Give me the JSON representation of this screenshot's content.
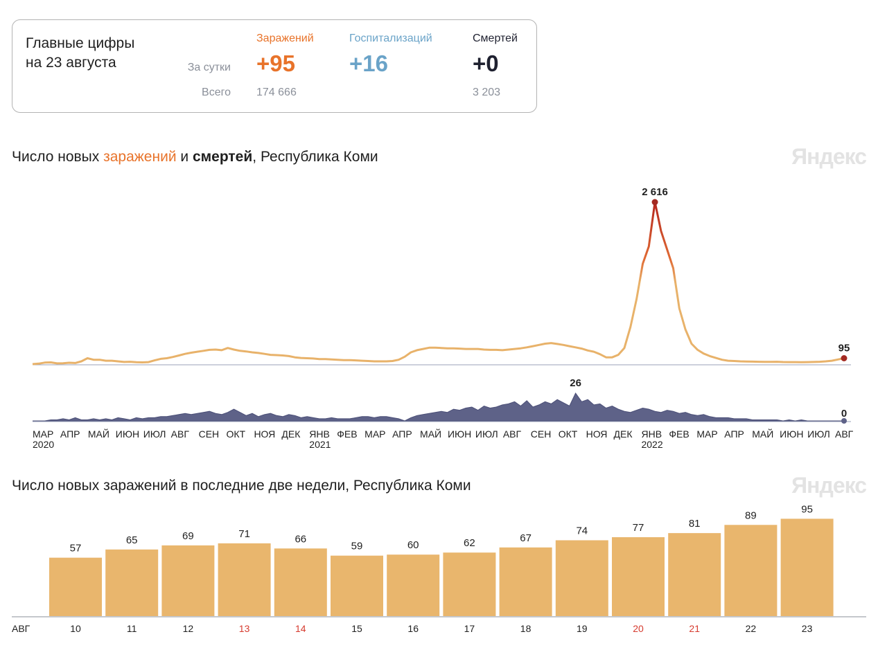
{
  "summary": {
    "title_line1": "Главные цифры",
    "title_line2": "на 23 августа",
    "row_day": "За сутки",
    "row_total": "Всего",
    "infections": {
      "label": "Заражений",
      "day": "+95",
      "total": "174 666",
      "color": "#e8732a"
    },
    "hospitalizations": {
      "label": "Госпитализаций",
      "day": "+16",
      "total": "",
      "color": "#6aa3c8"
    },
    "deaths": {
      "label": "Смертей",
      "day": "+0",
      "total": "3 203",
      "color": "#1f2130"
    }
  },
  "chart1": {
    "title_pre": "Число новых ",
    "title_inf": "заражений",
    "title_mid": " и ",
    "title_deaths": "смертей",
    "title_post": ", Республика Коми",
    "watermark": "Яндекс"
  },
  "chart2": {
    "title": "Число новых заражений в последние две недели, Республика Коми",
    "watermark": "Яндекс"
  },
  "chart_data": [
    {
      "type": "area",
      "title": "Число новых заражений и смертей, Республика Коми",
      "series": [
        {
          "name": "Заражений",
          "note": "weekly approximate values of daily new infections, Mar 2020 – Aug 2022",
          "values": [
            0,
            8,
            25,
            28,
            12,
            15,
            22,
            18,
            45,
            95,
            70,
            70,
            55,
            55,
            45,
            35,
            38,
            30,
            28,
            32,
            60,
            85,
            95,
            115,
            140,
            165,
            185,
            200,
            215,
            230,
            235,
            225,
            260,
            235,
            215,
            205,
            190,
            180,
            165,
            150,
            145,
            140,
            130,
            110,
            100,
            95,
            90,
            80,
            80,
            75,
            70,
            65,
            65,
            60,
            55,
            50,
            45,
            45,
            45,
            50,
            70,
            120,
            190,
            225,
            245,
            265,
            265,
            260,
            255,
            255,
            250,
            245,
            245,
            245,
            235,
            230,
            230,
            225,
            235,
            245,
            255,
            270,
            290,
            310,
            330,
            340,
            325,
            310,
            290,
            270,
            250,
            220,
            200,
            160,
            110,
            110,
            150,
            260,
            600,
            1050,
            1620,
            1900,
            2616,
            2150,
            1850,
            1550,
            900,
            560,
            330,
            230,
            170,
            130,
            100,
            70,
            55,
            50,
            45,
            42,
            40,
            38,
            36,
            36,
            38,
            34,
            32,
            32,
            30,
            32,
            35,
            38,
            45,
            55,
            75,
            95
          ],
          "peak_label": "2 616",
          "last_label": "95"
        },
        {
          "name": "Смертей",
          "note": "weekly approximate values of daily new deaths",
          "values": [
            0,
            0,
            0,
            1,
            1,
            2,
            1,
            3,
            1,
            1,
            2,
            1,
            2,
            1,
            3,
            2,
            1,
            3,
            2,
            3,
            3,
            4,
            4,
            5,
            6,
            7,
            6,
            7,
            8,
            9,
            7,
            6,
            8,
            11,
            8,
            5,
            7,
            4,
            6,
            7,
            5,
            4,
            6,
            5,
            3,
            4,
            3,
            2,
            2,
            3,
            2,
            2,
            2,
            3,
            4,
            4,
            3,
            4,
            4,
            3,
            2,
            0,
            3,
            5,
            6,
            7,
            8,
            9,
            8,
            11,
            10,
            12,
            13,
            10,
            14,
            12,
            13,
            15,
            16,
            18,
            14,
            19,
            13,
            15,
            18,
            16,
            20,
            17,
            14,
            26,
            18,
            20,
            15,
            16,
            12,
            14,
            11,
            9,
            8,
            10,
            12,
            11,
            9,
            8,
            10,
            9,
            7,
            8,
            6,
            5,
            6,
            4,
            3,
            3,
            3,
            2,
            2,
            2,
            1,
            1,
            1,
            1,
            1,
            0,
            1,
            0,
            1,
            0,
            0,
            0,
            0,
            0
          ],
          "peak_label": "26",
          "last_label": "0"
        }
      ],
      "x_month_labels": [
        "МАР",
        "АПР",
        "МАЙ",
        "ИЮН",
        "ИЮЛ",
        "АВГ",
        "СЕН",
        "ОКТ",
        "НОЯ",
        "ДЕК",
        "ЯНВ",
        "ФЕВ",
        "МАР",
        "АПР",
        "МАЙ",
        "ИЮН",
        "ИЮЛ",
        "АВГ",
        "СЕН",
        "ОКТ",
        "НОЯ",
        "ДЕК",
        "ЯНВ",
        "ФЕВ",
        "МАР",
        "АПР",
        "МАЙ",
        "ИЮН",
        "ИЮЛ",
        "АВГ"
      ],
      "x_year_labels": [
        {
          "month_index": 0,
          "year": "2020"
        },
        {
          "month_index": 10,
          "year": "2021"
        },
        {
          "month_index": 22,
          "year": "2022"
        }
      ]
    },
    {
      "type": "bar",
      "title": "Число новых заражений в последние две недели, Республика Коми",
      "month_label": "АВГ",
      "categories": [
        "10",
        "11",
        "12",
        "13",
        "14",
        "15",
        "16",
        "17",
        "18",
        "19",
        "20",
        "21",
        "22",
        "23"
      ],
      "values": [
        57,
        65,
        69,
        71,
        66,
        59,
        60,
        62,
        67,
        74,
        77,
        81,
        89,
        95
      ],
      "weekend": [
        false,
        false,
        false,
        true,
        true,
        false,
        false,
        false,
        false,
        false,
        true,
        true,
        false,
        false
      ],
      "ylim": [
        0,
        100
      ],
      "bar_color": "#e9b66d",
      "weekend_color": "#d63b2f"
    }
  ]
}
